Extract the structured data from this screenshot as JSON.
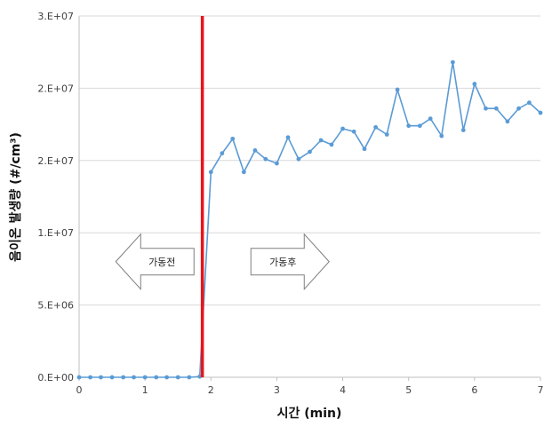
{
  "chart_data": {
    "type": "line",
    "xlabel": "시간 (min)",
    "ylabel": "음이온 발생량 (#/cm³)",
    "xlim": [
      0,
      7
    ],
    "ylim": [
      0,
      25000000
    ],
    "x_ticks": [
      "0",
      "1",
      "2",
      "3",
      "4",
      "5",
      "6",
      "7"
    ],
    "y_ticks": [
      "0.E+00",
      "5.E+06",
      "1.E+07",
      "2.E+07",
      "2.E+07",
      "3.E+07"
    ],
    "y_tick_values": [
      0,
      5000000,
      10000000,
      15000000,
      20000000,
      25000000
    ],
    "grid": "horizontal",
    "marker_line": {
      "x": 1.87,
      "color": "#e8151b"
    },
    "series": [
      {
        "color": "#5b9bd5",
        "x": [
          0,
          0.17,
          0.33,
          0.5,
          0.67,
          0.83,
          1.0,
          1.17,
          1.33,
          1.5,
          1.67,
          1.83,
          2.0,
          2.17,
          2.33,
          2.5,
          2.67,
          2.83,
          3.0,
          3.17,
          3.33,
          3.5,
          3.67,
          3.83,
          4.0,
          4.17,
          4.33,
          4.5,
          4.67,
          4.83,
          5.0,
          5.17,
          5.33,
          5.5,
          5.67,
          5.83,
          6.0,
          6.17,
          6.33,
          6.5,
          6.67,
          6.83,
          7.0
        ],
        "y": [
          0,
          0,
          0,
          0,
          0,
          0,
          0,
          0,
          0,
          0,
          0,
          50000,
          14200000,
          15500000,
          16500000,
          14200000,
          15700000,
          15100000,
          14800000,
          16600000,
          15100000,
          15600000,
          16400000,
          16100000,
          17200000,
          17000000,
          15800000,
          17300000,
          16800000,
          19900000,
          17400000,
          17400000,
          17900000,
          16700000,
          21800000,
          17100000,
          20300000,
          18600000,
          18600000,
          17700000,
          18600000,
          19000000,
          18300000
        ]
      }
    ],
    "annotations": [
      {
        "text": "가동전",
        "direction": "left",
        "x_center": 1.15,
        "y": 8000000
      },
      {
        "text": "가동후",
        "direction": "right",
        "x_center": 3.2,
        "y": 8000000
      }
    ]
  }
}
